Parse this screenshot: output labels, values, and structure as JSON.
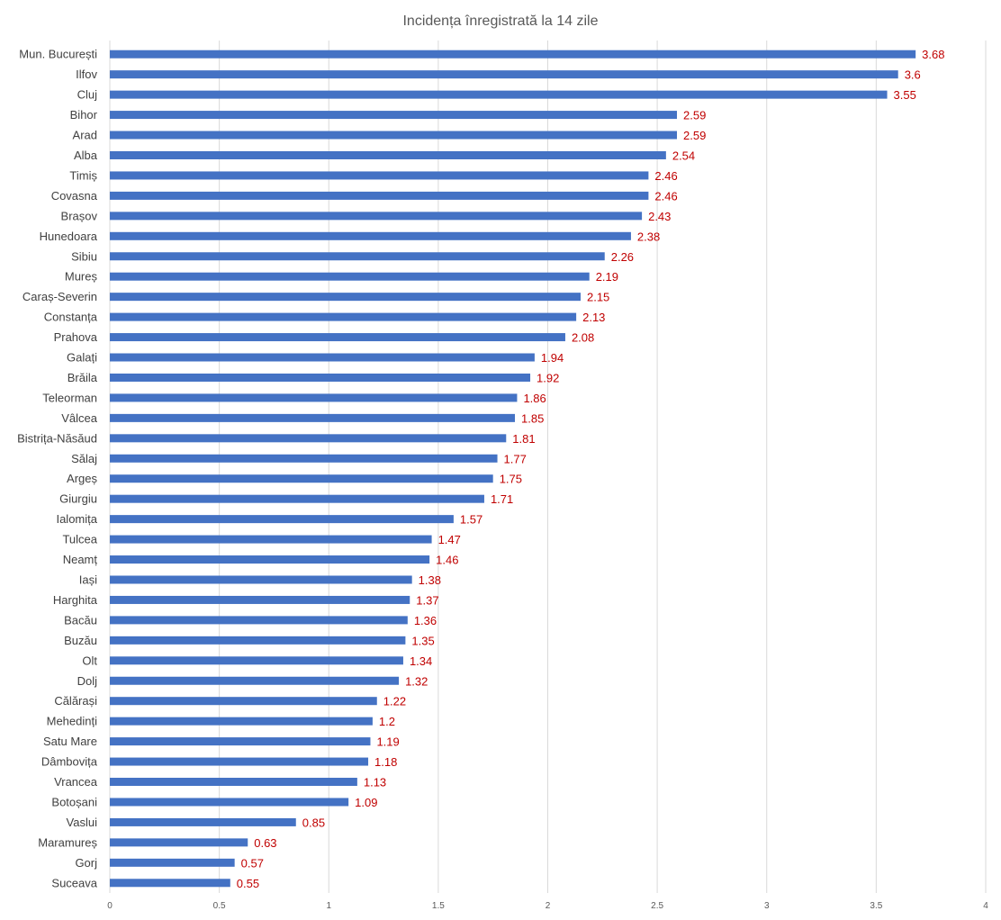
{
  "chart_data": {
    "type": "bar",
    "orientation": "horizontal",
    "title": "Incidența  înregistrată la 14 zile",
    "xlabel": "",
    "ylabel": "",
    "xlim": [
      0,
      4
    ],
    "x_ticks": [
      "0",
      "0.5",
      "1",
      "1.5",
      "2",
      "2.5",
      "3",
      "3.5",
      "4"
    ],
    "grid": true,
    "bar_color": "#4472c4",
    "label_color": "#c00000",
    "categories": [
      "Mun. București",
      "Ilfov",
      "Cluj",
      "Bihor",
      "Arad",
      "Alba",
      "Timiș",
      "Covasna",
      "Brașov",
      "Hunedoara",
      "Sibiu",
      "Mureș",
      "Caraș-Severin",
      "Constanța",
      "Prahova",
      "Galați",
      "Brăila",
      "Teleorman",
      "Vâlcea",
      "Bistrița-Năsăud",
      "Sălaj",
      "Argeș",
      "Giurgiu",
      "Ialomița",
      "Tulcea",
      "Neamț",
      "Iași",
      "Harghita",
      "Bacău",
      "Buzău",
      "Olt",
      "Dolj",
      "Călărași",
      "Mehedinți",
      "Satu Mare",
      "Dâmbovița",
      "Vrancea",
      "Botoșani",
      "Vaslui",
      "Maramureș",
      "Gorj",
      "Suceava"
    ],
    "values": [
      3.68,
      3.6,
      3.55,
      2.59,
      2.59,
      2.54,
      2.46,
      2.46,
      2.43,
      2.38,
      2.26,
      2.19,
      2.15,
      2.13,
      2.08,
      1.94,
      1.92,
      1.86,
      1.85,
      1.81,
      1.77,
      1.75,
      1.71,
      1.57,
      1.47,
      1.46,
      1.38,
      1.37,
      1.36,
      1.35,
      1.34,
      1.32,
      1.22,
      1.2,
      1.19,
      1.18,
      1.13,
      1.09,
      0.85,
      0.63,
      0.57,
      0.55
    ],
    "value_labels": [
      "3.68",
      "3.6",
      "3.55",
      "2.59",
      "2.59",
      "2.54",
      "2.46",
      "2.46",
      "2.43",
      "2.38",
      "2.26",
      "2.19",
      "2.15",
      "2.13",
      "2.08",
      "1.94",
      "1.92",
      "1.86",
      "1.85",
      "1.81",
      "1.77",
      "1.75",
      "1.71",
      "1.57",
      "1.47",
      "1.46",
      "1.38",
      "1.37",
      "1.36",
      "1.35",
      "1.34",
      "1.32",
      "1.22",
      "1.2",
      "1.19",
      "1.18",
      "1.13",
      "1.09",
      "0.85",
      "0.63",
      "0.57",
      "0.55"
    ]
  }
}
